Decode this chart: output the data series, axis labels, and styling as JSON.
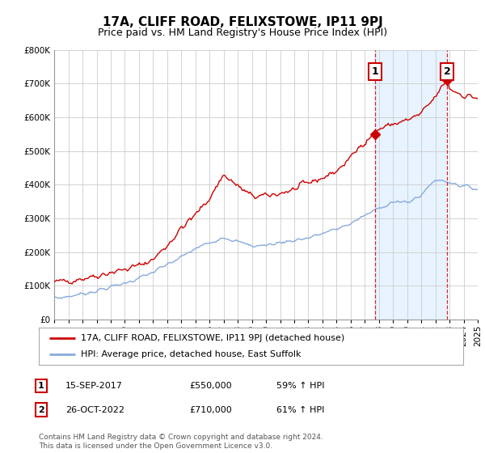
{
  "title": "17A, CLIFF ROAD, FELIXSTOWE, IP11 9PJ",
  "subtitle": "Price paid vs. HM Land Registry's House Price Index (HPI)",
  "xlim": [
    1995,
    2025
  ],
  "ylim": [
    0,
    800000
  ],
  "yticks": [
    0,
    100000,
    200000,
    300000,
    400000,
    500000,
    600000,
    700000,
    800000
  ],
  "xticks": [
    1995,
    1996,
    1997,
    1998,
    1999,
    2000,
    2001,
    2002,
    2003,
    2004,
    2005,
    2006,
    2007,
    2008,
    2009,
    2010,
    2011,
    2012,
    2013,
    2014,
    2015,
    2016,
    2017,
    2018,
    2019,
    2020,
    2021,
    2022,
    2023,
    2024,
    2025
  ],
  "property_color": "#cc0000",
  "hpi_color": "#88aadd",
  "shade_color": "#ddeeff",
  "marker1_x": 2017.71,
  "marker1_y": 550000,
  "marker2_x": 2022.82,
  "marker2_y": 710000,
  "vline1_x": 2017.71,
  "vline2_x": 2022.82,
  "legend_property": "17A, CLIFF ROAD, FELIXSTOWE, IP11 9PJ (detached house)",
  "legend_hpi": "HPI: Average price, detached house, East Suffolk",
  "note1_date": "15-SEP-2017",
  "note1_price": "£550,000",
  "note1_info": "59% ↑ HPI",
  "note2_date": "26-OCT-2022",
  "note2_price": "£710,000",
  "note2_info": "61% ↑ HPI",
  "footer": "Contains HM Land Registry data © Crown copyright and database right 2024.\nThis data is licensed under the Open Government Licence v3.0.",
  "background_color": "#ffffff",
  "grid_color": "#cccccc",
  "title_fontsize": 11,
  "subtitle_fontsize": 9,
  "tick_fontsize": 7.5,
  "legend_fontsize": 8,
  "note_fontsize": 8,
  "footer_fontsize": 6.5,
  "prop_seed": 42,
  "hpi_seed": 7,
  "prop_points_x": [
    1995,
    1996,
    1997,
    1998,
    1999,
    2000,
    2001,
    2002,
    2003,
    2004,
    2005,
    2006,
    2007,
    2008,
    2009,
    2010,
    2011,
    2012,
    2013,
    2014,
    2015,
    2016,
    2017,
    2017.71,
    2018,
    2019,
    2020,
    2021,
    2022,
    2022.82,
    2023,
    2024,
    2025
  ],
  "prop_points_y": [
    110000,
    115000,
    122000,
    130000,
    140000,
    148000,
    160000,
    178000,
    220000,
    270000,
    310000,
    360000,
    430000,
    395000,
    365000,
    365000,
    375000,
    385000,
    405000,
    420000,
    440000,
    480000,
    530000,
    550000,
    565000,
    580000,
    590000,
    610000,
    660000,
    710000,
    685000,
    665000,
    658000
  ],
  "hpi_points_x": [
    1995,
    1996,
    1997,
    1998,
    1999,
    2000,
    2001,
    2002,
    2003,
    2004,
    2005,
    2006,
    2007,
    2008,
    2009,
    2010,
    2011,
    2012,
    2013,
    2014,
    2015,
    2016,
    2017,
    2018,
    2019,
    2020,
    2021,
    2022,
    2023,
    2024,
    2025
  ],
  "hpi_points_y": [
    62000,
    68000,
    76000,
    85000,
    96000,
    108000,
    122000,
    140000,
    162000,
    185000,
    210000,
    228000,
    245000,
    230000,
    218000,
    220000,
    228000,
    235000,
    242000,
    255000,
    268000,
    285000,
    308000,
    330000,
    350000,
    345000,
    370000,
    415000,
    408000,
    395000,
    388000
  ]
}
